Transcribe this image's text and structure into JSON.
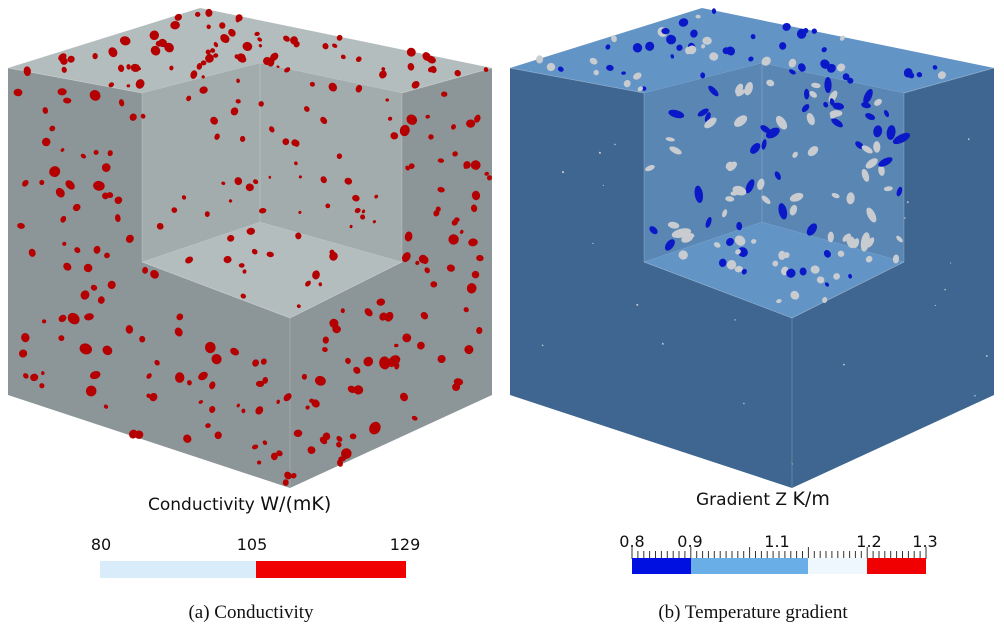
{
  "panels": [
    {
      "caption": "(a) Conductivity",
      "colorbar": {
        "title": "Conductivity",
        "unit": "W/(mK)",
        "tick_labels": [
          "80",
          "105",
          "129"
        ],
        "range": [
          80,
          129
        ],
        "segments": [
          {
            "from": 80,
            "to": 105,
            "color": "#d9ecfa"
          },
          {
            "from": 105,
            "to": 129,
            "color": "#f00000"
          }
        ]
      },
      "colors": {
        "matrix_top": "#b4bdbd",
        "matrix_side_light": "#a3acad",
        "matrix_side_dark": "#8c9597",
        "inclusion": "#b40000"
      }
    },
    {
      "caption": "(b) Temperature gradient",
      "colorbar": {
        "title": "Gradient Z",
        "unit": "K/m",
        "tick_labels": [
          "0.8",
          "0.9",
          "1.1",
          "1.2",
          "1.3"
        ],
        "range": [
          0.8,
          1.3
        ],
        "segments": [
          {
            "from": 0.8,
            "to": 0.9,
            "color": "#0010e0"
          },
          {
            "from": 0.9,
            "to": 1.1,
            "color": "#6aaee8"
          },
          {
            "from": 1.1,
            "to": 1.2,
            "color": "#eef7fd"
          },
          {
            "from": 1.2,
            "to": 1.3,
            "color": "#f00000"
          }
        ]
      },
      "colors": {
        "matrix_top": "#6394c6",
        "matrix_side_light": "#5a86b4",
        "matrix_side_dark": "#3f6690",
        "inclusion_low": "#0a18c8",
        "inclusion_mid": "#c8ccd0"
      }
    }
  ]
}
